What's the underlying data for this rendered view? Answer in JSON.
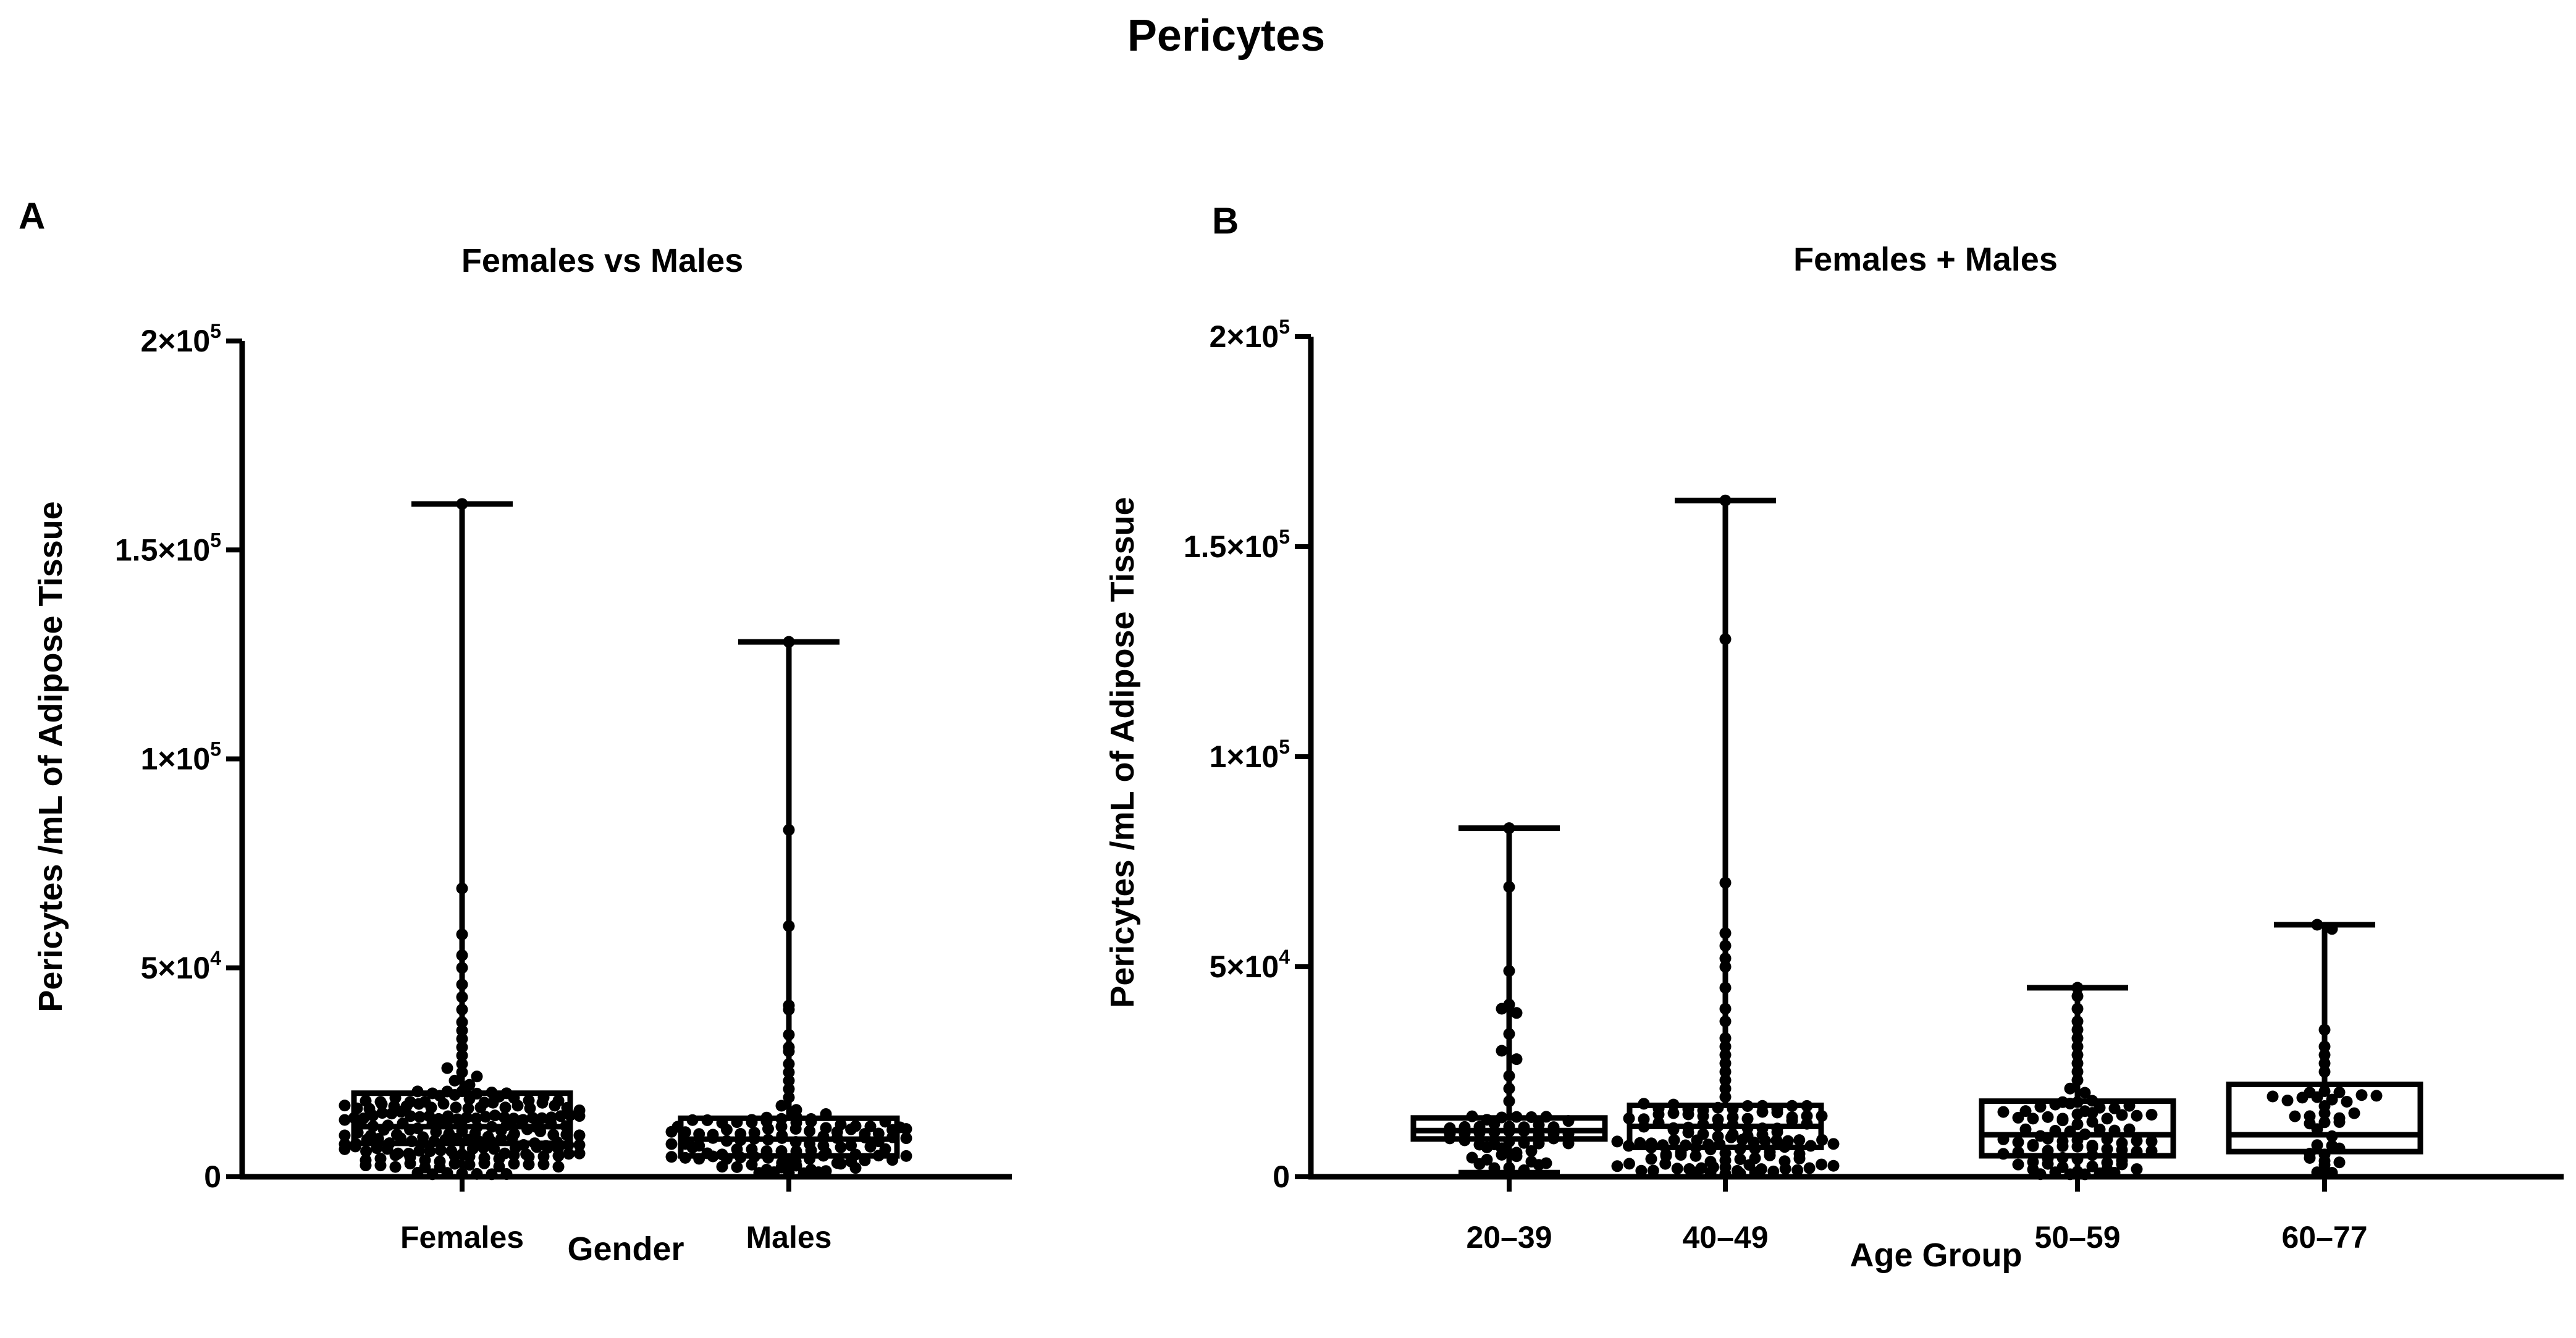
{
  "figure": {
    "title": "Pericytes"
  },
  "chart_data": [
    {
      "type": "box",
      "panel_letter": "A",
      "title": "Females vs Males",
      "xlabel": "Gender",
      "ylabel": "Pericytes /mL of Adipose Tissue",
      "ylim": [
        0,
        200000
      ],
      "yticks": [
        {
          "value": 0,
          "mantissa": "0",
          "exponent": ""
        },
        {
          "value": 50000,
          "mantissa": "5×10",
          "exponent": "4"
        },
        {
          "value": 100000,
          "mantissa": "1×10",
          "exponent": "5"
        },
        {
          "value": 150000,
          "mantissa": "1.5×10",
          "exponent": "5"
        },
        {
          "value": 200000,
          "mantissa": "2×10",
          "exponent": "5"
        }
      ],
      "categories": [
        "Females",
        "Males"
      ],
      "boxes": [
        {
          "label": "Females",
          "min": 0,
          "q1": 8000,
          "median": 12000,
          "q3": 20000,
          "max": 161000,
          "n": 200,
          "outer_points": [
            161000,
            69000,
            58000,
            53000,
            50000,
            46000,
            43000,
            40000,
            37000,
            35000,
            33000,
            31000,
            29000,
            27000,
            26000,
            25000,
            24000,
            23000,
            22000
          ]
        },
        {
          "label": "Males",
          "min": 0,
          "q1": 5000,
          "median": 9000,
          "q3": 14000,
          "max": 128000,
          "n": 120,
          "outer_points": [
            128000,
            83000,
            60000,
            41000,
            40000,
            34000,
            31000,
            30000,
            27000,
            25000,
            23000,
            21000,
            19000,
            17000,
            16000,
            15000
          ]
        }
      ]
    },
    {
      "type": "box",
      "panel_letter": "B",
      "title": "Females + Males",
      "xlabel": "Age Group",
      "ylabel": "Pericytes /mL of Adipose Tissue",
      "ylim": [
        0,
        200000
      ],
      "yticks": [
        {
          "value": 0,
          "mantissa": "0",
          "exponent": ""
        },
        {
          "value": 50000,
          "mantissa": "5×10",
          "exponent": "4"
        },
        {
          "value": 100000,
          "mantissa": "1×10",
          "exponent": "5"
        },
        {
          "value": 150000,
          "mantissa": "1.5×10",
          "exponent": "5"
        },
        {
          "value": 200000,
          "mantissa": "2×10",
          "exponent": "5"
        }
      ],
      "categories": [
        "20–39",
        "40–49",
        "50–59",
        "60–77"
      ],
      "boxes": [
        {
          "label": "20–39",
          "min": 1000,
          "q1": 9000,
          "median": 11000,
          "q3": 14000,
          "max": 83000,
          "n": 60,
          "outer_points": [
            83000,
            69000,
            49000,
            41000,
            40000,
            39000,
            34000,
            30000,
            28000,
            24000,
            21000,
            18000
          ]
        },
        {
          "label": "40–49",
          "min": 0,
          "q1": 7000,
          "median": 12000,
          "q3": 17000,
          "max": 161000,
          "n": 130,
          "outer_points": [
            161000,
            128000,
            70000,
            58000,
            55000,
            52000,
            50000,
            45000,
            40000,
            37000,
            33000,
            31000,
            29000,
            27000,
            25000,
            23000,
            21000,
            19000
          ]
        },
        {
          "label": "50–59",
          "min": 0,
          "q1": 5000,
          "median": 10000,
          "q3": 18000,
          "max": 45000,
          "n": 90,
          "outer_points": [
            45000,
            43000,
            40000,
            37000,
            35000,
            33000,
            31000,
            29000,
            27000,
            25000,
            23000,
            21000,
            20000
          ]
        },
        {
          "label": "60–77",
          "min": 0,
          "q1": 6000,
          "median": 10000,
          "q3": 22000,
          "max": 60000,
          "n": 40,
          "outer_points": [
            60000,
            59000,
            35000,
            31000,
            29000,
            27000,
            25000
          ]
        }
      ]
    }
  ]
}
